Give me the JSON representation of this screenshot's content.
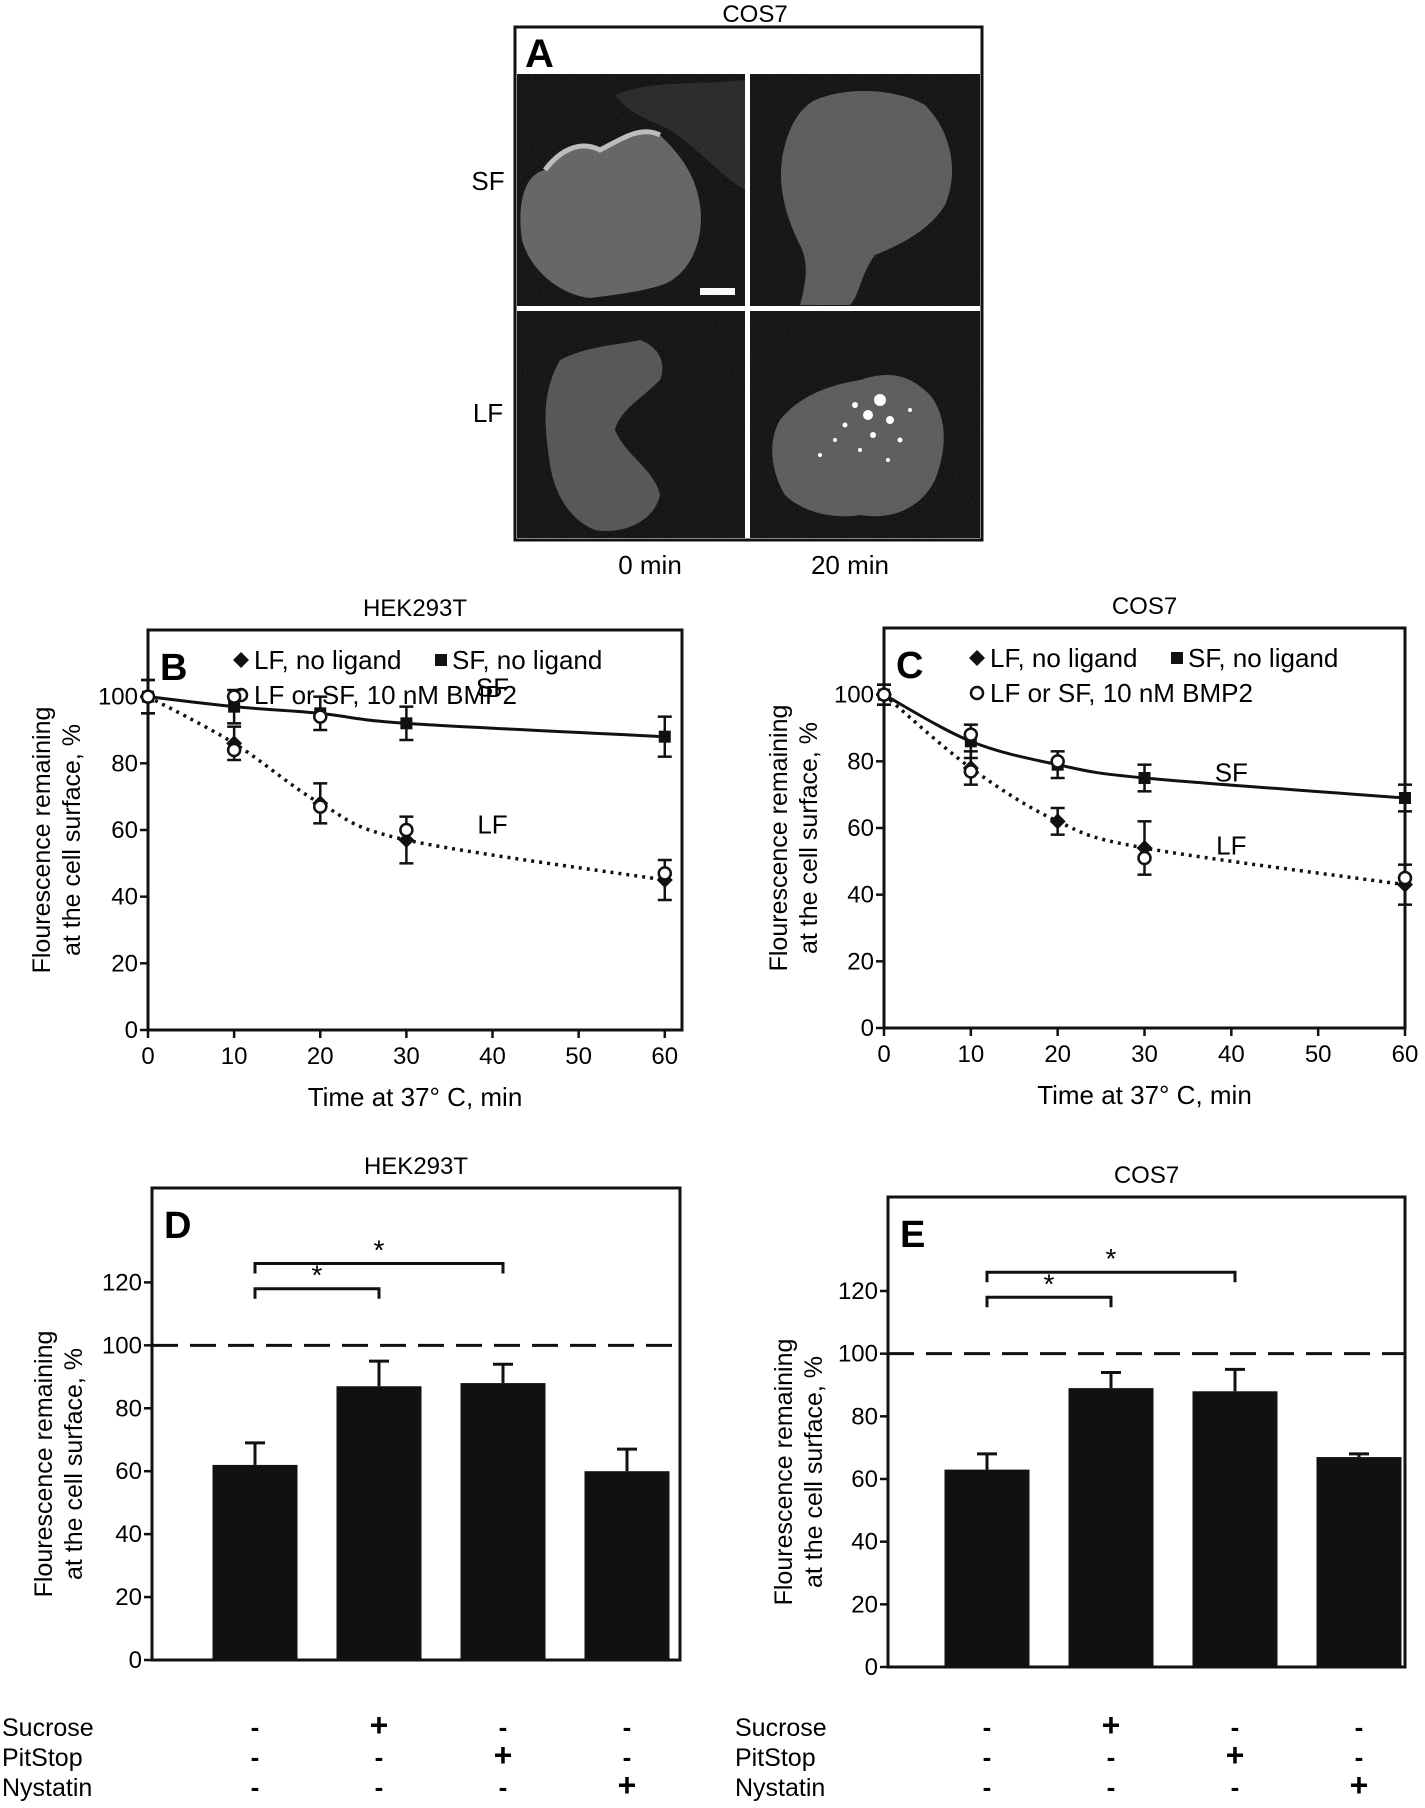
{
  "panel_a": {
    "title": "COS7",
    "letter": "A",
    "row_labels": [
      "SF",
      "LF"
    ],
    "col_labels": [
      "0 min",
      "20 min"
    ]
  },
  "colors": {
    "ink": "#111111",
    "micrograph_bg": "#070707",
    "cell_fill": "#6a6a6a"
  },
  "chart_data": [
    {
      "id": "B",
      "type": "line",
      "letter": "B",
      "title": "HEK293T",
      "xlabel": "Time at 37° C, min",
      "ylabel": [
        "Flourescence remaining",
        "at the cell surface, %"
      ],
      "xlim": [
        0,
        62
      ],
      "ylim": [
        0,
        120
      ],
      "xticks": [
        0,
        10,
        20,
        30,
        40,
        50,
        60
      ],
      "yticks": [
        0,
        20,
        40,
        60,
        80,
        100
      ],
      "legend": [
        "LF, no ligand",
        "SF, no ligand",
        "LF or SF, 10 nM BMP2"
      ],
      "series": [
        {
          "name": "SF, no ligand",
          "marker": "square",
          "curve_label": "SF",
          "style": "solid",
          "x": [
            0,
            10,
            20,
            30,
            60
          ],
          "values": [
            100,
            97,
            95,
            92,
            88
          ],
          "err": [
            5,
            5,
            5,
            5,
            6
          ]
        },
        {
          "name": "LF, no ligand",
          "marker": "diamond",
          "curve_label": "LF",
          "style": "dotted",
          "x": [
            0,
            10,
            20,
            30,
            60
          ],
          "values": [
            100,
            86,
            68,
            57,
            45
          ],
          "err": [
            5,
            5,
            6,
            7,
            6
          ]
        },
        {
          "name": "LF or SF, 10 nM BMP2",
          "marker": "circle",
          "style": "none",
          "x": [
            0,
            10,
            10,
            20,
            20,
            30,
            60
          ],
          "values": [
            100,
            100,
            84,
            94,
            67,
            60,
            47
          ],
          "err": [
            0,
            0,
            0,
            0,
            0,
            0,
            0
          ]
        }
      ]
    },
    {
      "id": "C",
      "type": "line",
      "letter": "C",
      "title": "COS7",
      "xlabel": "Time at 37° C, min",
      "ylabel": [
        "Flourescence remaining",
        "at the cell surface, %"
      ],
      "xlim": [
        0,
        60
      ],
      "ylim": [
        0,
        120
      ],
      "xticks": [
        0,
        10,
        20,
        30,
        40,
        50,
        60
      ],
      "yticks": [
        0,
        20,
        40,
        60,
        80,
        100
      ],
      "legend": [
        "LF, no ligand",
        "SF, no ligand",
        "LF or SF, 10 nM BMP2"
      ],
      "series": [
        {
          "name": "SF, no ligand",
          "marker": "square",
          "curve_label": "SF",
          "style": "solid",
          "x": [
            0,
            10,
            20,
            30,
            60
          ],
          "values": [
            100,
            86,
            79,
            75,
            69
          ],
          "err": [
            3,
            5,
            4,
            4,
            4
          ]
        },
        {
          "name": "LF, no ligand",
          "marker": "diamond",
          "curve_label": "LF",
          "style": "dotted",
          "x": [
            0,
            10,
            20,
            30,
            60
          ],
          "values": [
            100,
            78,
            62,
            54,
            43
          ],
          "err": [
            3,
            5,
            4,
            8,
            6
          ]
        },
        {
          "name": "LF or SF, 10 nM BMP2",
          "marker": "circle",
          "style": "none",
          "x": [
            0,
            10,
            10,
            20,
            30,
            60
          ],
          "values": [
            100,
            88,
            77,
            80,
            51,
            45
          ],
          "err": [
            0,
            0,
            0,
            0,
            0,
            0
          ]
        }
      ]
    },
    {
      "id": "D",
      "type": "bar",
      "letter": "D",
      "title": "HEK293T",
      "ylabel": [
        "Flourescence remaining",
        "at the cell surface, %"
      ],
      "ylim": [
        0,
        150
      ],
      "yticks": [
        0,
        20,
        40,
        60,
        80,
        100,
        120
      ],
      "reference_line": 100,
      "values": [
        62,
        87,
        88,
        60
      ],
      "err": [
        7,
        8,
        6,
        7
      ],
      "significance": [
        {
          "from": 0,
          "to": 1,
          "y": 118,
          "label": "*"
        },
        {
          "from": 0,
          "to": 2,
          "y": 126,
          "label": "*"
        }
      ],
      "treatments": [
        {
          "name": "Sucrose",
          "signs": [
            "-",
            "+",
            "-",
            "-"
          ]
        },
        {
          "name": "PitStop",
          "signs": [
            "-",
            "-",
            "+",
            "-"
          ]
        },
        {
          "name": "Nystatin",
          "signs": [
            "-",
            "-",
            "-",
            "+"
          ]
        }
      ]
    },
    {
      "id": "E",
      "type": "bar",
      "letter": "E",
      "title": "COS7",
      "ylabel": [
        "Flourescence remaining",
        "at the cell surface, %"
      ],
      "ylim": [
        0,
        150
      ],
      "yticks": [
        0,
        20,
        40,
        60,
        80,
        100,
        120
      ],
      "reference_line": 100,
      "values": [
        63,
        89,
        88,
        67
      ],
      "err": [
        5,
        5,
        7,
        1
      ],
      "significance": [
        {
          "from": 0,
          "to": 1,
          "y": 118,
          "label": "*"
        },
        {
          "from": 0,
          "to": 2,
          "y": 126,
          "label": "*"
        }
      ],
      "treatments": [
        {
          "name": "Sucrose",
          "signs": [
            "-",
            "+",
            "-",
            "-"
          ]
        },
        {
          "name": "PitStop",
          "signs": [
            "-",
            "-",
            "+",
            "-"
          ]
        },
        {
          "name": "Nystatin",
          "signs": [
            "-",
            "-",
            "-",
            "+"
          ]
        }
      ]
    }
  ]
}
